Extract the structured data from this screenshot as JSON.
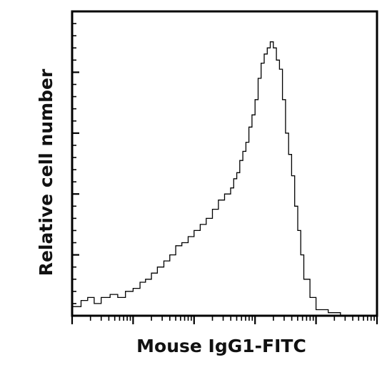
{
  "chart_data": {
    "type": "histogram",
    "title": "",
    "xlabel": "Mouse IgG1-FITC",
    "ylabel": "Relative cell number",
    "x_scale": "log",
    "xlim": [
      1,
      100000
    ],
    "ylim": [
      0,
      100
    ],
    "x_tick_labels": [],
    "y_tick_labels": [],
    "grid": false,
    "legend": "none",
    "line_color": "#000000",
    "series": [
      {
        "x": [
          1.0,
          1.4,
          1.8,
          2.3,
          3.0,
          4.2,
          5.6,
          7.5,
          10,
          13,
          16,
          20,
          25,
          32,
          40,
          50,
          63,
          80,
          100,
          126,
          158,
          200,
          251,
          316,
          398,
          446,
          501,
          562,
          631,
          708,
          794,
          891,
          1000,
          1122,
          1259,
          1413,
          1585,
          1778,
          1995,
          2239,
          2512,
          2818,
          3162,
          3548,
          3981,
          4467,
          5012,
          5623,
          6310,
          7943,
          10000,
          15849,
          25119,
          100000
        ],
        "y": [
          3,
          5,
          6,
          4,
          6,
          7,
          6,
          8,
          9,
          11,
          12,
          14,
          16,
          18,
          20,
          23,
          24,
          26,
          28,
          30,
          32,
          35,
          38,
          40,
          42,
          45,
          47,
          51,
          54,
          57,
          62,
          66,
          71,
          78,
          83,
          86,
          88,
          90,
          88,
          84,
          81,
          71,
          60,
          53,
          46,
          36,
          28,
          20,
          12,
          6,
          2,
          1,
          0,
          0
        ]
      }
    ]
  }
}
